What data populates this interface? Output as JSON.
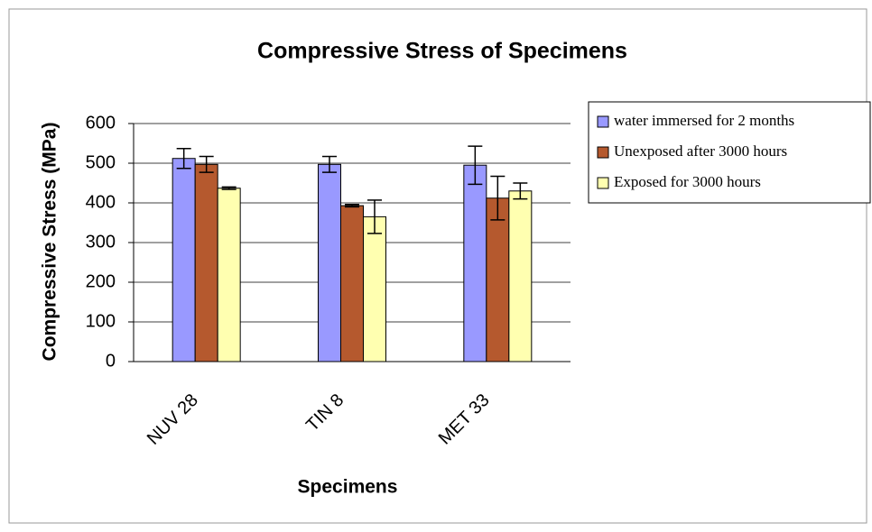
{
  "chart_data": {
    "type": "bar",
    "title": "Compressive Stress of Specimens",
    "x_label": "Specimens",
    "y_label": "Compressive Stress (MPa)",
    "categories": [
      "NUV 28",
      "TIN 8",
      "MET 33"
    ],
    "series": [
      {
        "name": "water immersed for 2 months",
        "color": "#9999ff",
        "values": [
          512,
          497,
          495
        ],
        "errors": [
          25,
          20,
          48
        ]
      },
      {
        "name": "Unexposed after 3000 hours",
        "color": "#b5592e",
        "values": [
          497,
          393,
          412
        ],
        "errors": [
          20,
          3,
          55
        ]
      },
      {
        "name": "Exposed for 3000 hours",
        "color": "#ffffb0",
        "values": [
          437,
          365,
          430
        ],
        "errors": [
          3,
          42,
          20
        ]
      }
    ],
    "ylim": [
      0,
      600
    ],
    "yticks": [
      0,
      100,
      200,
      300,
      400,
      500,
      600
    ],
    "grid": true,
    "legend": "right"
  }
}
